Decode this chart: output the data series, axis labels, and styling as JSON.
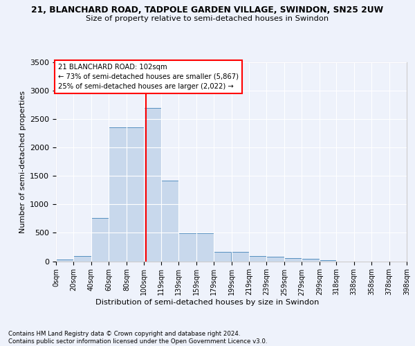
{
  "title_line1": "21, BLANCHARD ROAD, TADPOLE GARDEN VILLAGE, SWINDON, SN25 2UW",
  "title_line2": "Size of property relative to semi-detached houses in Swindon",
  "xlabel": "Distribution of semi-detached houses by size in Swindon",
  "ylabel": "Number of semi-detached properties",
  "footer": "Contains HM Land Registry data © Crown copyright and database right 2024.\nContains public sector information licensed under the Open Government Licence v3.0.",
  "property_size": 102,
  "annotation_text": "21 BLANCHARD ROAD: 102sqm\n← 73% of semi-detached houses are smaller (5,867)\n25% of semi-detached houses are larger (2,022) →",
  "bin_edges": [
    0,
    20,
    40,
    60,
    80,
    100,
    119,
    139,
    159,
    179,
    199,
    219,
    239,
    259,
    279,
    299,
    318,
    338,
    358,
    378,
    398
  ],
  "bin_counts": [
    30,
    90,
    760,
    2360,
    2360,
    2700,
    1420,
    490,
    490,
    165,
    165,
    95,
    75,
    55,
    45,
    18,
    0,
    0,
    0,
    0
  ],
  "bar_color": "#c8d8ec",
  "bar_edge_color": "#5590c0",
  "vline_color": "red",
  "vline_x": 102,
  "ylim": [
    0,
    3500
  ],
  "yticks": [
    0,
    500,
    1000,
    1500,
    2000,
    2500,
    3000,
    3500
  ],
  "background_color": "#eef2fb",
  "plot_bg_color": "#eef2fb",
  "grid_color": "white"
}
